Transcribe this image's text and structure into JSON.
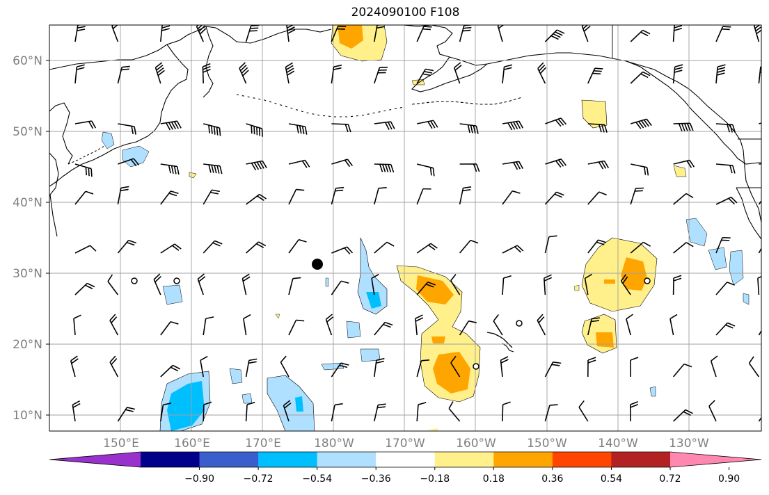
{
  "title": "2024090100 F108",
  "map": {
    "lat_labels": [
      "60°N",
      "50°N",
      "40°N",
      "30°N",
      "20°N",
      "10°N"
    ],
    "lon_labels": [
      "150°E",
      "160°E",
      "170°E",
      "180°W",
      "170°W",
      "160°W",
      "150°W",
      "140°W",
      "130°W"
    ],
    "lon_range": [
      140,
      242
    ],
    "lat_range": [
      8,
      65
    ],
    "grid": true,
    "colors": {
      "land_outline": "#000000",
      "grid": "#a0a0a0",
      "pos_light": "#fff08c",
      "pos_mid": "#ffa500",
      "neg_light": "#b0e0ff",
      "neg_mid": "#00bfff"
    }
  },
  "colorbar": {
    "ticks": [
      "−0.90",
      "−0.72",
      "−0.54",
      "−0.36",
      "−0.18",
      "0.18",
      "0.36",
      "0.54",
      "0.72",
      "0.90"
    ],
    "colors": [
      "#9932cc",
      "#00008b",
      "#3a5fcd",
      "#00bfff",
      "#b0e0ff",
      "#ffffff",
      "#fff08c",
      "#ffa500",
      "#ff4500",
      "#b22222",
      "#ff88b0"
    ],
    "extend": "both"
  }
}
